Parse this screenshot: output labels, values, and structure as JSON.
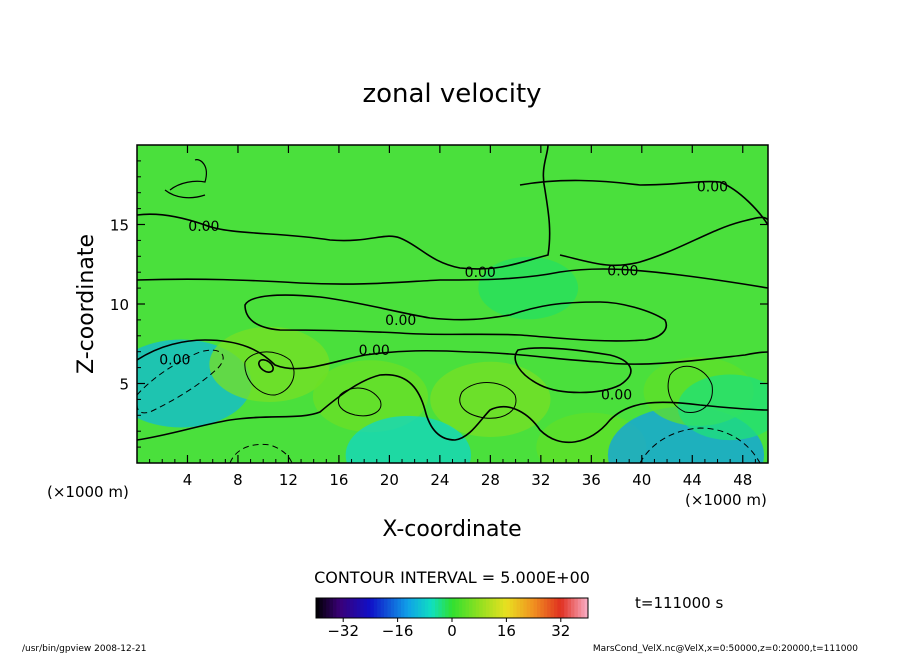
{
  "chart_data": {
    "type": "heatmap",
    "title": "zonal velocity",
    "xlabel": "X-coordinate",
    "ylabel": "Z-coordinate",
    "x_unit": "(×1000 m)",
    "y_unit": "(×1000 m)",
    "xlim": [
      0,
      50
    ],
    "ylim": [
      0,
      20
    ],
    "x_ticks": [
      "4",
      "8",
      "12",
      "16",
      "20",
      "24",
      "28",
      "32",
      "36",
      "40",
      "44",
      "48"
    ],
    "x_tick_values": [
      4,
      8,
      12,
      16,
      20,
      24,
      28,
      32,
      36,
      40,
      44,
      48
    ],
    "y_ticks": [
      "5",
      "10",
      "15"
    ],
    "y_tick_values": [
      5,
      10,
      15
    ],
    "contour_interval_text": "CONTOUR INTERVAL = 5.000E+00",
    "contour_labels": [
      {
        "text": "0.00",
        "x": 5.3,
        "z": 14.9
      },
      {
        "text": "0.00",
        "x": 27.2,
        "z": 12.0
      },
      {
        "text": "0.00",
        "x": 38.5,
        "z": 12.1
      },
      {
        "text": "0.00",
        "x": 45.6,
        "z": 17.4
      },
      {
        "text": "0.00",
        "x": 20.9,
        "z": 9.0
      },
      {
        "text": "0.00",
        "x": 18.8,
        "z": 7.1
      },
      {
        "text": "0.00",
        "x": 3.0,
        "z": 6.5
      },
      {
        "text": "0.00",
        "x": 38.0,
        "z": 4.3
      }
    ],
    "colorbar": {
      "range": [
        -40,
        40
      ],
      "tick_labels": [
        "−32",
        "−16",
        "0",
        "16",
        "32"
      ],
      "tick_values": [
        -32,
        -16,
        0,
        16,
        32
      ]
    },
    "time_label": "t=111000 s",
    "footer_left": "/usr/bin/gpview  2008-12-21",
    "footer_right": "MarsCond_VelX.nc@VelX,x=0:50000,z=0:20000,t=111000",
    "field_description": [
      {
        "x": 3.5,
        "z": 5.0,
        "value": -10
      },
      {
        "x": 10.5,
        "z": 6.2,
        "value": 6
      },
      {
        "x": 18.5,
        "z": 4.2,
        "value": 5
      },
      {
        "x": 28.0,
        "z": 4.0,
        "value": 6
      },
      {
        "x": 36.0,
        "z": 1.0,
        "value": 4
      },
      {
        "x": 43.5,
        "z": 0.5,
        "value": -13
      },
      {
        "x": 21.5,
        "z": 0.5,
        "value": -7
      },
      {
        "x": 44.5,
        "z": 4.5,
        "value": 4
      },
      {
        "x": 47.0,
        "z": 3.5,
        "value": -3
      },
      {
        "x": 31.0,
        "z": 11.0,
        "value": -2
      }
    ]
  }
}
